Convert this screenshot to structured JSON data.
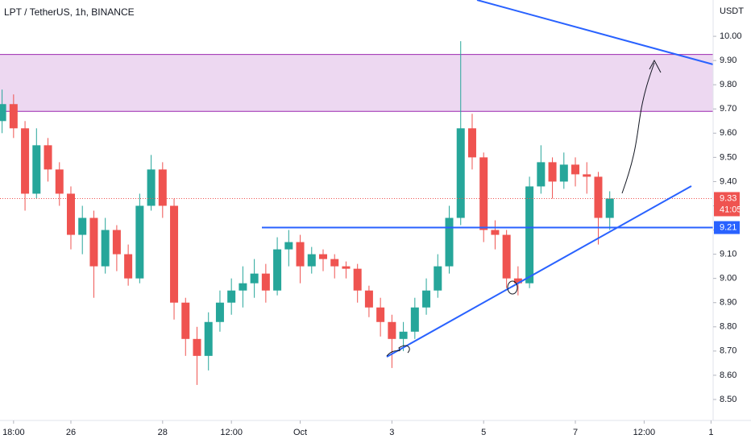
{
  "chart_data": {
    "type": "candlestick",
    "title": "LPT / TetherUS, 1h, BINANCE",
    "y_axis_label": "USDT",
    "x": [
      -12,
      -6,
      0,
      6,
      12,
      18,
      24,
      30,
      36,
      42,
      48,
      54,
      60,
      66,
      72,
      78,
      84,
      90,
      96,
      102,
      108,
      114,
      120,
      126,
      132,
      138,
      144,
      150,
      156,
      162,
      168,
      174,
      180,
      186,
      192,
      198,
      204,
      210,
      216,
      222,
      228,
      234,
      240,
      246,
      252,
      258,
      264,
      270,
      276,
      282,
      288,
      294,
      300,
      306
    ],
    "open": [
      9.65,
      9.72,
      9.62,
      9.35,
      9.55,
      9.45,
      9.35,
      9.18,
      9.25,
      9.05,
      9.2,
      9.1,
      9.0,
      9.3,
      9.45,
      9.3,
      8.9,
      8.75,
      8.68,
      8.82,
      8.9,
      8.95,
      8.98,
      9.02,
      8.95,
      9.12,
      9.15,
      9.05,
      9.1,
      9.08,
      9.05,
      9.04,
      8.95,
      8.88,
      8.82,
      8.75,
      8.78,
      8.88,
      8.95,
      9.05,
      9.25,
      9.62,
      9.5,
      9.2,
      9.18,
      9.0,
      8.98,
      9.38,
      9.48,
      9.4,
      9.47,
      9.43,
      9.42,
      9.25
    ],
    "high": [
      9.78,
      9.76,
      9.65,
      9.62,
      9.58,
      9.48,
      9.38,
      9.3,
      9.28,
      9.25,
      9.22,
      9.14,
      9.35,
      9.51,
      9.48,
      9.33,
      8.92,
      8.8,
      8.86,
      8.95,
      9.0,
      9.05,
      9.08,
      9.06,
      9.17,
      9.2,
      9.18,
      9.13,
      9.12,
      9.1,
      9.07,
      9.06,
      8.97,
      8.92,
      8.85,
      8.82,
      8.92,
      9.0,
      9.1,
      9.3,
      9.98,
      9.68,
      9.52,
      9.24,
      9.2,
      9.05,
      9.42,
      9.55,
      9.5,
      9.52,
      9.5,
      9.48,
      9.44,
      9.36
    ],
    "low": [
      9.6,
      9.58,
      9.28,
      9.33,
      9.4,
      9.3,
      9.12,
      9.1,
      8.92,
      9.02,
      9.03,
      8.97,
      8.98,
      9.28,
      9.25,
      8.83,
      8.68,
      8.56,
      8.62,
      8.78,
      8.85,
      8.88,
      8.92,
      8.9,
      8.93,
      9.05,
      8.98,
      9.02,
      9.03,
      9.0,
      9.0,
      8.9,
      8.84,
      8.76,
      8.63,
      8.7,
      8.75,
      8.85,
      8.92,
      9.02,
      9.22,
      9.45,
      9.15,
      9.12,
      8.96,
      8.93,
      8.96,
      9.35,
      9.33,
      9.37,
      9.38,
      9.35,
      9.14,
      9.2
    ],
    "close": [
      9.72,
      9.62,
      9.35,
      9.55,
      9.45,
      9.35,
      9.18,
      9.25,
      9.05,
      9.2,
      9.1,
      9.0,
      9.3,
      9.45,
      9.3,
      8.9,
      8.75,
      8.68,
      8.82,
      8.9,
      8.95,
      8.98,
      9.02,
      8.95,
      9.12,
      9.15,
      9.05,
      9.1,
      9.08,
      9.05,
      9.04,
      8.95,
      8.88,
      8.82,
      8.75,
      8.78,
      8.88,
      8.95,
      9.05,
      9.25,
      9.62,
      9.5,
      9.2,
      9.18,
      9.0,
      8.98,
      9.38,
      9.48,
      9.4,
      9.47,
      9.43,
      9.42,
      9.25,
      9.33
    ],
    "up_color": "#26a69a",
    "down_color": "#ef5350",
    "xlim": [
      -13.1,
      360.1
    ],
    "xticks": [
      {
        "value": -6,
        "label": "18:00"
      },
      {
        "value": 24,
        "label": "26"
      },
      {
        "value": 72,
        "label": "28"
      },
      {
        "value": 108,
        "label": "12:00"
      },
      {
        "value": 144,
        "label": "Oct"
      },
      {
        "value": 192,
        "label": "3"
      },
      {
        "value": 240,
        "label": "5"
      },
      {
        "value": 288,
        "label": "7"
      },
      {
        "value": 324,
        "label": "12:00"
      },
      {
        "value": 359,
        "label": "1"
      }
    ],
    "ylim": [
      8.42,
      10.15
    ],
    "yticks": [
      {
        "value": 8.5,
        "label": "8.50"
      },
      {
        "value": 8.6,
        "label": "8.60"
      },
      {
        "value": 8.7,
        "label": "8.70"
      },
      {
        "value": 8.8,
        "label": "8.80"
      },
      {
        "value": 8.9,
        "label": "8.90"
      },
      {
        "value": 9.0,
        "label": "9.00"
      },
      {
        "value": 9.1,
        "label": "9.10"
      },
      {
        "value": 9.2,
        "label": "9.20"
      },
      {
        "value": 9.3,
        "label": "9.30"
      },
      {
        "value": 9.4,
        "label": "9.40"
      },
      {
        "value": 9.5,
        "label": "9.50"
      },
      {
        "value": 9.6,
        "label": "9.60"
      },
      {
        "value": 9.7,
        "label": "9.70"
      },
      {
        "value": 9.8,
        "label": "9.80"
      },
      {
        "value": 9.9,
        "label": "9.90"
      },
      {
        "value": 10.0,
        "label": "10.00"
      }
    ],
    "zone": [
      9.69,
      9.925
    ],
    "zone_color": "#9c27b0",
    "level": 9.21,
    "level_color": "#2962ff",
    "last_price": 9.33,
    "countdown": "41:05"
  }
}
